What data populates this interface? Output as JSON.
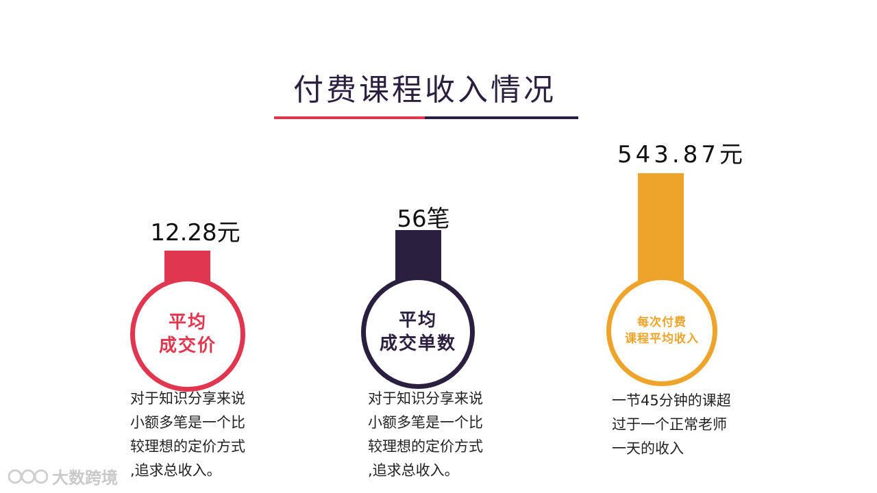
{
  "title": "付费课程收入情况",
  "colors": {
    "red": "#e0364f",
    "purple": "#2b1f3f",
    "gold": "#eea42a"
  },
  "chart_data": {
    "type": "bar",
    "categories": [
      "平均成交价",
      "平均成交单数",
      "每次付费课程平均收入"
    ],
    "values": [
      12.28,
      56,
      543.87
    ],
    "value_labels": [
      "12.28元",
      "56笔",
      "543.87元"
    ],
    "note": "three independent metrics, each bar on its own scale"
  },
  "metrics": [
    {
      "value_label": "12.28元",
      "circle_lines": [
        "平均",
        "成交价"
      ],
      "color": "#e0364f",
      "description": [
        "对于知识分享来说",
        "小额多笔是一个比",
        "较理想的定价方式",
        ",追求总收入。"
      ]
    },
    {
      "value_label": "56笔",
      "circle_lines": [
        "平均",
        "成交单数"
      ],
      "color": "#2b1f3f",
      "description": [
        "对于知识分享来说",
        "小额多笔是一个比",
        "较理想的定价方式",
        ",追求总收入。"
      ]
    },
    {
      "value_label": "543.87元",
      "circle_lines": [
        "每次付费",
        "课程平均收入"
      ],
      "color": "#eea42a",
      "description": [
        "一节45分钟的课超",
        "过于一个正常老师",
        "一天的收入"
      ]
    }
  ],
  "watermark": {
    "text": "大数跨境"
  }
}
